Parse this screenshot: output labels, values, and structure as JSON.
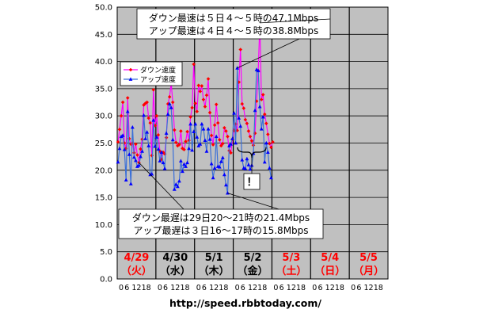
{
  "chart_data": {
    "type": "line",
    "ylim": [
      0,
      50
    ],
    "yticks": [
      "0.0",
      "5.0",
      "10.0",
      "15.0",
      "20.0",
      "25.0",
      "30.0",
      "35.0",
      "40.0",
      "45.0",
      "50.0"
    ],
    "hour_ticks": [
      "0",
      "6",
      "12",
      "18"
    ],
    "days": [
      {
        "date": "4/29",
        "dow": "（火）",
        "holiday": true
      },
      {
        "date": "4/30",
        "dow": "（水）",
        "holiday": false
      },
      {
        "date": "5/1",
        "dow": "（木）",
        "holiday": false
      },
      {
        "date": "5/2",
        "dow": "（金）",
        "holiday": false
      },
      {
        "date": "5/3",
        "dow": "（土）",
        "holiday": true
      },
      {
        "date": "5/4",
        "dow": "（日）",
        "holiday": true
      },
      {
        "date": "5/5",
        "dow": "（月）",
        "holiday": true
      }
    ],
    "series": [
      {
        "name": "ダウン速度",
        "color": "#ff00ff",
        "marker_color": "#ff0000",
        "marker": "diamond",
        "values": [
          25.2,
          27.5,
          30,
          32.5,
          25,
          24,
          33.3,
          25.8,
          24.8,
          25,
          23.2,
          24.8,
          22.8,
          21.4,
          23.9,
          25.7,
          32,
          32.3,
          32.5,
          29.6,
          28.7,
          22.7,
          34.8,
          28.2,
          30,
          26.5,
          23.5,
          22,
          23.3,
          23,
          26,
          32.2,
          33.5,
          36,
          32.5,
          27.4,
          25.1,
          24.5,
          24.7,
          27.2,
          24,
          23.8,
          25.3,
          27.1,
          25.5,
          29.8,
          31.5,
          39.5,
          32.3,
          30.8,
          35.6,
          34.5,
          35.5,
          33,
          31.7,
          33.8,
          36.8,
          30.6,
          26.4,
          24.7,
          28.3,
          32.1,
          28.7,
          25.6,
          24.5,
          24.9,
          27.8,
          27.2,
          26.2,
          23.6,
          23.2,
          25.7,
          27.3,
          28.5,
          27.3,
          36.2,
          42.2,
          32.2,
          31.4,
          29.3,
          28.6,
          27.2,
          26.2,
          25.4,
          24.6,
          26.8,
          32.7,
          38.3,
          47.1,
          33,
          33.9,
          30.3,
          28.6,
          26.6,
          24.9,
          24.2,
          25.2
        ]
      },
      {
        "name": "アップ速度",
        "color": "#3a6fd8",
        "marker_color": "#0000ff",
        "marker": "triangle",
        "values": [
          21.5,
          24,
          26.2,
          26.4,
          23.8,
          18.2,
          30.8,
          22.9,
          17.5,
          27.9,
          22.4,
          21.8,
          20.7,
          20.9,
          22.5,
          23.5,
          30.1,
          25.8,
          27,
          24.5,
          19.2,
          19.3,
          29.2,
          24.4,
          26.1,
          23.9,
          21.7,
          23.3,
          21.4,
          20.3,
          26.8,
          30.3,
          32.2,
          31.5,
          25.6,
          16.5,
          17.4,
          17,
          18,
          21.7,
          19.8,
          21.1,
          20.7,
          21.4,
          24,
          28.5,
          23.7,
          27.1,
          28.5,
          26.1,
          24.5,
          24.8,
          28.5,
          27.6,
          25.5,
          23.5,
          27.6,
          25.7,
          21.2,
          18.6,
          20.4,
          26.2,
          20.7,
          20.6,
          21.6,
          22.3,
          19.2,
          17.3,
          15.8,
          24.5,
          24.8,
          25.8,
          30.5,
          25,
          38.8,
          29.6,
          28.1,
          21.9,
          20.4,
          20.3,
          22.1,
          21,
          20.2,
          20.9,
          23.1,
          31,
          38.5,
          38.3,
          31.7,
          27.6,
          29.8,
          21.5,
          25,
          23.3,
          20.4,
          18.6
        ]
      }
    ],
    "annotations": [
      {
        "line1": "ダウン最速は５日４～５時の47.1Mbps",
        "line2": "アップ最速は４日４～５時の38.8Mbps"
      },
      {
        "line1": "ダウン最遅は29日20～21時の21.4Mbps",
        "line2": "アップ最遅は３日16～17時の15.8Mbps"
      }
    ],
    "exclaim": "！",
    "source_url": "http://speed.rbbtoday.com/",
    "colors": {
      "plot_bg": "#c0c0c0",
      "holiday_text": "#ff0000",
      "weekday_text": "#000000"
    }
  }
}
